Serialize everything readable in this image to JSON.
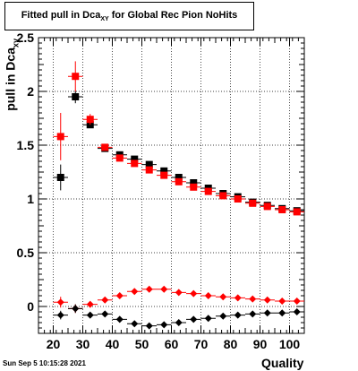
{
  "header": {
    "title_prefix": "Fitted pull in Dca",
    "title_sub": "XY",
    "title_suffix": " for Global Rec Pion NoHits"
  },
  "footer": {
    "timestamp": "Sun Sep  5 10:15:28 2021"
  },
  "chart_data": {
    "type": "scatter",
    "title": "Fitted pull in Dca_XY for Global Rec Pion NoHits",
    "xlabel": "Quality",
    "ylabel": "pull in Dca_XY",
    "xlim": [
      15,
      105
    ],
    "ylim": [
      -0.25,
      2.5
    ],
    "x_ticks": [
      20,
      30,
      40,
      50,
      60,
      70,
      80,
      90,
      100
    ],
    "y_ticks": [
      0,
      0.5,
      1,
      1.5,
      2,
      2.5
    ],
    "y_tick_labels": [
      "0",
      "0.5",
      "1",
      "1.5",
      "2",
      "2.5"
    ],
    "grid": true,
    "legend": "none",
    "x": [
      22.5,
      27.5,
      32.5,
      37.5,
      42.5,
      47.5,
      52.5,
      57.5,
      62.5,
      67.5,
      72.5,
      77.5,
      82.5,
      87.5,
      92.5,
      97.5,
      102.5
    ],
    "series": [
      {
        "marker": "square",
        "color": "#000000",
        "values": [
          1.2,
          1.95,
          1.69,
          1.47,
          1.41,
          1.37,
          1.32,
          1.26,
          1.2,
          1.15,
          1.1,
          1.05,
          1.02,
          0.97,
          0.94,
          0.91,
          0.89
        ],
        "yerr": [
          0.12,
          0.06,
          0.03,
          0.02,
          0.02,
          0.02,
          0.01,
          0.01,
          0.01,
          0.01,
          0.01,
          0.01,
          0.01,
          0.01,
          0.01,
          0.01,
          0.01
        ]
      },
      {
        "marker": "square",
        "color": "#ff0000",
        "values": [
          1.58,
          2.14,
          1.74,
          1.48,
          1.38,
          1.33,
          1.27,
          1.22,
          1.16,
          1.11,
          1.07,
          1.03,
          1.0,
          0.96,
          0.93,
          0.9,
          0.88
        ],
        "yerr": [
          0.22,
          0.14,
          0.05,
          0.02,
          0.02,
          0.02,
          0.01,
          0.01,
          0.01,
          0.01,
          0.01,
          0.01,
          0.01,
          0.01,
          0.01,
          0.01,
          0.01
        ]
      },
      {
        "marker": "diamond",
        "color": "#ff0000",
        "values": [
          0.04,
          -0.02,
          0.02,
          0.06,
          0.1,
          0.14,
          0.16,
          0.16,
          0.13,
          0.12,
          0.1,
          0.09,
          0.08,
          0.07,
          0.06,
          0.05,
          0.05
        ],
        "yerr": [
          0.05,
          0.04,
          0.02,
          0.01,
          0.01,
          0.01,
          0.01,
          0.01,
          0.01,
          0.01,
          0.01,
          0.01,
          0.01,
          0.01,
          0.01,
          0.01,
          0.01
        ]
      },
      {
        "marker": "diamond",
        "color": "#000000",
        "values": [
          -0.08,
          -0.02,
          -0.08,
          -0.07,
          -0.12,
          -0.16,
          -0.18,
          -0.17,
          -0.15,
          -0.12,
          -0.11,
          -0.09,
          -0.08,
          -0.07,
          -0.06,
          -0.06,
          -0.05
        ],
        "yerr": [
          0.04,
          0.04,
          0.02,
          0.01,
          0.01,
          0.01,
          0.01,
          0.01,
          0.01,
          0.01,
          0.01,
          0.01,
          0.01,
          0.01,
          0.01,
          0.01,
          0.01
        ]
      }
    ]
  }
}
